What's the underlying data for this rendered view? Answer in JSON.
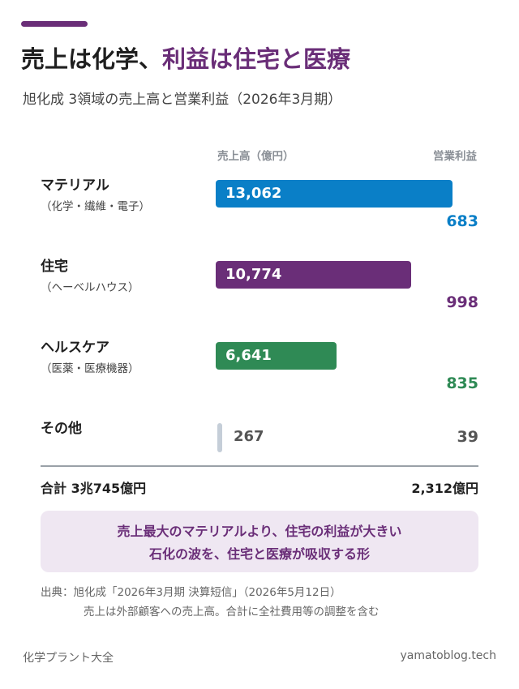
{
  "title": {
    "part1": "売上は化学、",
    "part2": "利益は住宅と医療"
  },
  "subtitle": "旭化成 3領域の売上高と営業利益（2026年3月期）",
  "colors": {
    "accent": "#6a2e78",
    "material": "#0a7fc7",
    "housing": "#6a2e78",
    "health": "#2f8a55",
    "other": "#c5ced8"
  },
  "chart_data": {
    "type": "bar",
    "orientation": "horizontal",
    "sales_header": "売上高（億円）",
    "profit_header": "営業利益",
    "xlim": [
      0,
      13400
    ],
    "segments": [
      {
        "name": "マテリアル",
        "sub": "（化学・繊維・電子）",
        "sales": 13062,
        "sales_label": "13,062",
        "profit": 683,
        "profit_label": "683",
        "color": "#0a7fc7"
      },
      {
        "name": "住宅",
        "sub": "（ヘーベルハウス）",
        "sales": 10774,
        "sales_label": "10,774",
        "profit": 998,
        "profit_label": "998",
        "color": "#6a2e78"
      },
      {
        "name": "ヘルスケア",
        "sub": "（医薬・医療機器）",
        "sales": 6641,
        "sales_label": "6,641",
        "profit": 835,
        "profit_label": "835",
        "color": "#2f8a55"
      },
      {
        "name": "その他",
        "sub": "",
        "sales": 267,
        "sales_label": "267",
        "profit": 39,
        "profit_label": "39",
        "color": "#c5ced8"
      }
    ],
    "total_label": "合計 3兆745億円",
    "total_profit_label": "2,312億円"
  },
  "callout": {
    "line1": "売上最大のマテリアルより、住宅の利益が大きい",
    "line2": "石化の波を、住宅と医療が吸収する形"
  },
  "source": "出典：旭化成「2026年3月期 決算短信」（2026年5月12日）",
  "note": "売上は外部顧客への売上高。合計に全社費用等の調整を含む",
  "footer": {
    "left": "化学プラント大全",
    "right": "yamatoblog.tech"
  }
}
